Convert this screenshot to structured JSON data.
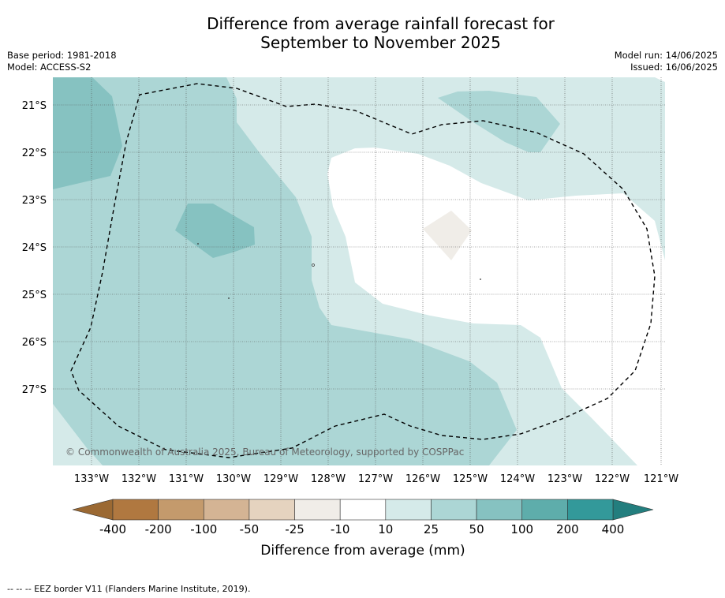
{
  "title_line1": "Difference from average rainfall forecast for",
  "title_line2": "September to November 2025",
  "base_period": "Base period: 1981-2018",
  "model": "Model: ACCESS-S2",
  "model_run": "Model run: 14/06/2025",
  "issued": "Issued: 16/06/2025",
  "copyright": "© Commonwealth of Australia 2025, Bureau of Meteorology, supported by COSPPac",
  "lat_labels": [
    "21°S",
    "22°S",
    "23°S",
    "24°S",
    "25°S",
    "26°S",
    "27°S"
  ],
  "lon_labels": [
    "133°W",
    "132°W",
    "131°W",
    "130°W",
    "129°W",
    "128°W",
    "127°W",
    "126°W",
    "125°W",
    "124°W",
    "123°W",
    "122°W",
    "121°W"
  ],
  "colorbar": {
    "label": "Difference from average (mm)",
    "ticks": [
      "-400",
      "-200",
      "-100",
      "-50",
      "-25",
      "-10",
      "10",
      "25",
      "50",
      "100",
      "200",
      "400"
    ],
    "colors": [
      "#b07840",
      "#c49a6c",
      "#d4b494",
      "#e5d3bf",
      "#f0ede8",
      "#ffffff",
      "#d5eae9",
      "#acd6d5",
      "#86c2c1",
      "#5eadab",
      "#33999a"
    ],
    "low_extend_color": "#9b6933",
    "high_extend_color": "#237e7e"
  },
  "legend_note": "--  --  -- EEZ border V11 (Flanders Marine Institute, 2019)."
}
